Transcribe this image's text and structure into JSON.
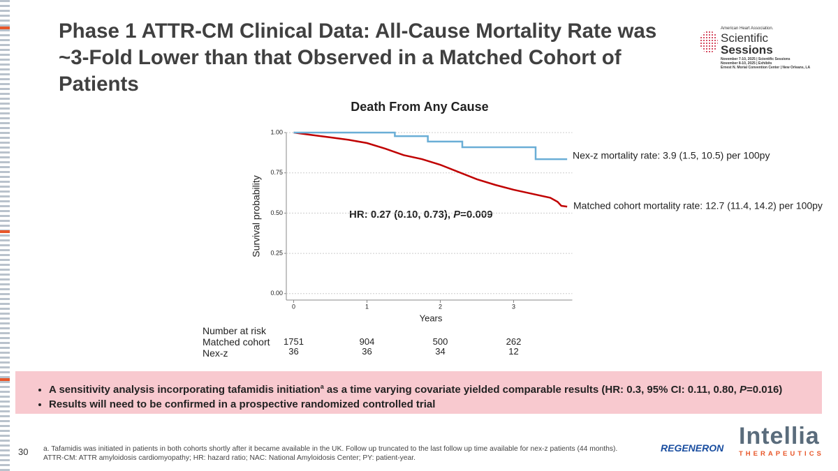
{
  "slide_title": "Phase 1 ATTR-CM Clinical Data: All-Cause Mortality Rate was ~3-Fold Lower than that Observed in a Matched Cohort of Patients",
  "chart_data": {
    "type": "line",
    "step": true,
    "title": "Death From Any Cause",
    "x_label": "Years",
    "y_label": "Survival probability",
    "xlim": [
      -0.1,
      3.8
    ],
    "ylim": [
      -0.04,
      1.0
    ],
    "xticks": [
      0,
      1,
      2,
      3
    ],
    "yticks": [
      {
        "value": 0,
        "label": "0.00"
      },
      {
        "value": 0.25,
        "label": "0.25"
      },
      {
        "value": 0.5,
        "label": "0.50"
      },
      {
        "value": 0.75,
        "label": "0.75"
      },
      {
        "value": 1,
        "label": "1.00"
      }
    ],
    "grid": true,
    "series": [
      {
        "name": "Matched cohort",
        "color": "#c00000",
        "x": [
          0,
          0.25,
          0.5,
          0.75,
          1.0,
          1.25,
          1.5,
          1.75,
          2.0,
          2.25,
          2.5,
          2.75,
          3.0,
          3.25,
          3.5,
          3.6,
          3.65,
          3.73
        ],
        "values": [
          1.0,
          0.985,
          0.97,
          0.955,
          0.935,
          0.9,
          0.86,
          0.835,
          0.8,
          0.755,
          0.71,
          0.675,
          0.645,
          0.62,
          0.595,
          0.57,
          0.545,
          0.54
        ],
        "at_risk": [
          "1751",
          "904",
          "500",
          "262"
        ]
      },
      {
        "name": "Nex-z",
        "color": "#6aaed6",
        "x": [
          0,
          1.38,
          1.38,
          1.83,
          1.83,
          2.3,
          2.3,
          3.3,
          3.3,
          3.73
        ],
        "values": [
          1,
          1,
          0.978,
          0.978,
          0.944,
          0.944,
          0.909,
          0.909,
          0.835,
          0.835
        ],
        "at_risk": [
          "36",
          "36",
          "34",
          "12"
        ]
      }
    ],
    "annotations": [
      "Nex-z mortality rate: 3.9 (1.5, 10.5) per 100py",
      "Matched cohort mortality rate: 12.7 (11.4, 14.2) per 100py"
    ],
    "hr_text": [
      "HR: 0.27 (0.10, 0.73), ",
      "P",
      "=0.009"
    ]
  },
  "risk_title": "Number at risk",
  "bullets": [
    [
      "A sensitivity analysis incorporating tafamidis initiation",
      "a",
      " as a time varying covariate yielded comparable results (HR: 0.3, 95% CI: 0.11, 0.80, ",
      "P",
      "=0.016)"
    ],
    [
      "Results will need to be confirmed in a prospective randomized controlled trial"
    ]
  ],
  "footnotes": [
    "a. Tafamidis was initiated in patients in both cohorts shortly after it became available in the UK. Follow up truncated to the last follow up time available for nex-z patients (44 months).",
    "ATTR-CM: ATTR amyloidosis cardiomyopathy; HR: hazard ratio; NAC: National Amyloidosis Center; PY: patient-year."
  ],
  "page_number": "30",
  "logo_aha": [
    "American Heart Association.",
    "Scientific",
    "Sessions",
    "November 7-10, 2025 | Scientific Sessions",
    "November 8-10, 2025 | Exhibits",
    "Ernest N. Morial Convention Center | New Orleans, LA"
  ],
  "logo_regeneron": "REGENERON",
  "logo_intellia": [
    "Intellia",
    "THERAPEUTICS"
  ]
}
